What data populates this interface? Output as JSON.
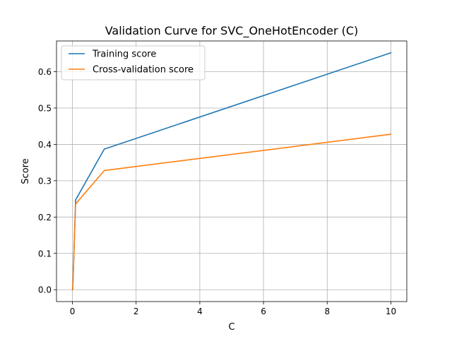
{
  "chart_data": {
    "type": "line",
    "title": "Validation Curve for SVC_OneHotEncoder (C)",
    "xlabel": "C",
    "ylabel": "Score",
    "xlim": [
      -0.5,
      10.5
    ],
    "ylim": [
      -0.0326,
      0.6846
    ],
    "xticks": [
      0,
      2,
      4,
      6,
      8,
      10
    ],
    "xtick_labels": [
      "0",
      "2",
      "4",
      "6",
      "8",
      "10"
    ],
    "yticks": [
      0.0,
      0.1,
      0.2,
      0.3,
      0.4,
      0.5,
      0.6
    ],
    "ytick_labels": [
      "0.0",
      "0.1",
      "0.2",
      "0.3",
      "0.4",
      "0.5",
      "0.6"
    ],
    "grid": true,
    "legend_position": "upper-left",
    "series": [
      {
        "name": "Training score",
        "color": "#1f77b4",
        "x": [
          0.001,
          0.01,
          0.1,
          1,
          10
        ],
        "y": [
          0.0,
          0.0,
          0.247,
          0.387,
          0.652
        ]
      },
      {
        "name": "Cross-validation score",
        "color": "#ff7f0e",
        "x": [
          0.001,
          0.01,
          0.1,
          1,
          10
        ],
        "y": [
          0.0,
          0.0,
          0.236,
          0.328,
          0.428
        ]
      }
    ]
  }
}
